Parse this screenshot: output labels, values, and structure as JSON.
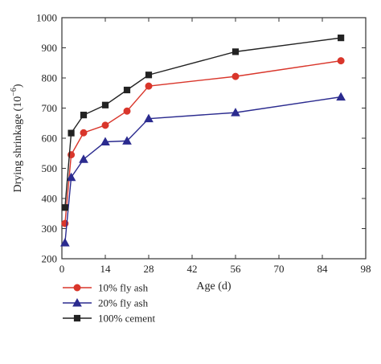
{
  "chart_data": {
    "type": "line",
    "xlabel": "Age (d)",
    "ylabel": "Drying shrinkage (10",
    "ylabel_exponent": "−6",
    "ylabel_close": ")",
    "xlim": [
      0,
      98
    ],
    "ylim": [
      200,
      1000
    ],
    "xticks": [
      0,
      14,
      28,
      42,
      56,
      70,
      84,
      98
    ],
    "yticks": [
      200,
      300,
      400,
      500,
      600,
      700,
      800,
      900,
      1000
    ],
    "grid": false,
    "legend_position": "bottom-left, below plot",
    "series": [
      {
        "name": "10% fly ash",
        "color": "#d9362b",
        "marker": "circle",
        "x": [
          1,
          3,
          7,
          14,
          21,
          28,
          56,
          90
        ],
        "y": [
          317,
          545,
          618,
          643,
          690,
          773,
          805,
          857
        ]
      },
      {
        "name": "20% fly ash",
        "color": "#2b2b8f",
        "marker": "triangle",
        "x": [
          1,
          3,
          7,
          14,
          21,
          28,
          56,
          90
        ],
        "y": [
          253,
          470,
          530,
          588,
          591,
          665,
          685,
          737
        ]
      },
      {
        "name": "100% cement",
        "color": "#222222",
        "marker": "square",
        "x": [
          1,
          3,
          7,
          14,
          21,
          28,
          56,
          90
        ],
        "y": [
          370,
          617,
          677,
          710,
          760,
          810,
          887,
          933
        ]
      }
    ]
  }
}
